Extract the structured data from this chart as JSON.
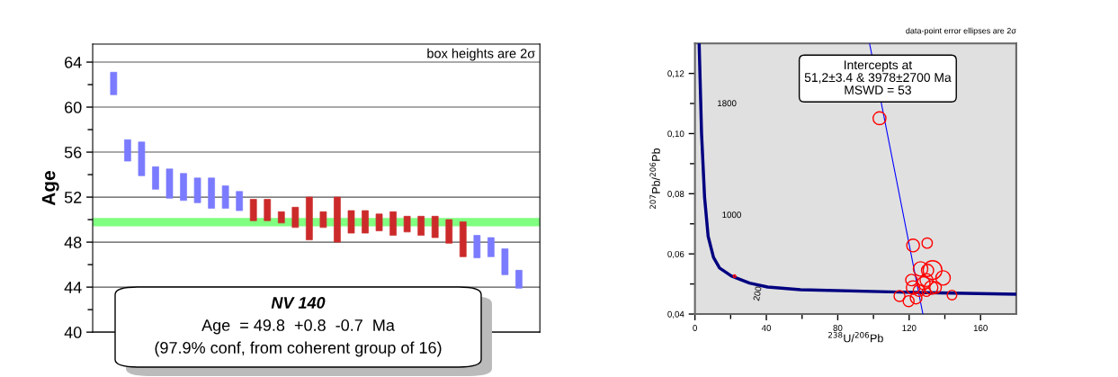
{
  "chart_data": [
    {
      "type": "bar",
      "ylabel": "Age",
      "categories": [
        null,
        null,
        null,
        null,
        null,
        null,
        null,
        null,
        null,
        null,
        null,
        null,
        null,
        null,
        null,
        null,
        null,
        null,
        null,
        null,
        null,
        null,
        null,
        null,
        null,
        null,
        null,
        null,
        null,
        null
      ],
      "base": [
        61.1,
        55.2,
        53.9,
        52.7,
        51.9,
        51.7,
        51.5,
        51.0,
        51.0,
        50.8,
        49.9,
        49.9,
        49.7,
        49.3,
        48.2,
        49.3,
        48.0,
        48.8,
        48.8,
        49.0,
        48.6,
        48.9,
        48.6,
        48.4,
        47.9,
        46.7,
        46.6,
        46.7,
        45.1,
        43.9
      ],
      "values": [
        2.0,
        1.9,
        3.0,
        2.0,
        2.6,
        2.4,
        2.2,
        2.7,
        2.0,
        1.7,
        1.9,
        1.9,
        1.0,
        1.8,
        3.8,
        1.4,
        4.0,
        2.0,
        2.0,
        1.5,
        2.1,
        1.4,
        1.7,
        1.9,
        2.1,
        3.1,
        2.0,
        1.7,
        2.3,
        1.6
      ],
      "colors": [
        "#7b7bff",
        "#7b7bff",
        "#7b7bff",
        "#7b7bff",
        "#7b7bff",
        "#7b7bff",
        "#7b7bff",
        "#7b7bff",
        "#7b7bff",
        "#7b7bff",
        "#cc2a2a",
        "#cc2a2a",
        "#cc2a2a",
        "#cc2a2a",
        "#cc2a2a",
        "#cc2a2a",
        "#cc2a2a",
        "#cc2a2a",
        "#cc2a2a",
        "#cc2a2a",
        "#cc2a2a",
        "#cc2a2a",
        "#cc2a2a",
        "#cc2a2a",
        "#cc2a2a",
        "#cc2a2a",
        "#7b7bff",
        "#7b7bff",
        "#7b7bff",
        "#7b7bff"
      ],
      "ylim": [
        40,
        65.6
      ],
      "yticks": [
        40,
        {
          "value": 42,
          "label": null
        },
        44,
        {
          "value": 46,
          "label": null
        },
        48,
        {
          "value": 50,
          "label": null
        },
        52,
        {
          "value": 54,
          "label": null
        },
        56,
        {
          "value": 58,
          "label": null
        },
        60,
        {
          "value": 62,
          "label": null
        },
        64
      ],
      "grid": "y",
      "bands": [
        {
          "axis": "y",
          "from": 49.4,
          "to": 50.15,
          "color": "#80ff80"
        }
      ],
      "annotations": [
        "box heights are 2σ",
        "NV 140",
        "Age  = 49.8  +0.8  -0.7  Ma",
        "(97.9% conf, from coherent group of 16)"
      ]
    },
    {
      "type": "scatter",
      "xlabel": "$^{238}$U/$^{206}$Pb",
      "ylabel": "$^{207}$Pb/$^{206}$Pb",
      "xlim": [
        0,
        180
      ],
      "xticks": [
        0,
        {
          "value": 20,
          "label": null
        },
        40,
        {
          "value": 60,
          "label": null
        },
        80,
        {
          "value": 100,
          "label": null
        },
        120,
        {
          "value": 140,
          "label": null
        },
        160
      ],
      "ylim": [
        0.04,
        0.13
      ],
      "yticks": [
        {
          "value": 0.04,
          "label": "0,04"
        },
        {
          "value": 0.05,
          "label": null
        },
        {
          "value": 0.06,
          "label": "0,06"
        },
        {
          "value": 0.07,
          "label": null
        },
        {
          "value": 0.08,
          "label": "0,08"
        },
        {
          "value": 0.09,
          "label": null
        },
        {
          "value": 0.1,
          "label": "0,10"
        },
        {
          "value": 0.11,
          "label": null
        },
        {
          "value": 0.12,
          "label": "0,12"
        }
      ],
      "series": [
        {
          "type": "line",
          "color": "#000080",
          "x": [
            2.35,
            3.7,
            5.4,
            7.4,
            10.4,
            13.8,
            20.5,
            30.6,
            40.7,
            59.2,
            114.6,
            180
          ],
          "values": [
            0.13,
            0.1,
            0.0788,
            0.0658,
            0.0588,
            0.0553,
            0.0526,
            0.0503,
            0.049,
            0.0481,
            0.0473,
            0.0466
          ]
        },
        {
          "type": "line",
          "color": "#0000ff",
          "x": [
            97.8,
            127.7
          ],
          "values": [
            0.13,
            0.04
          ]
        },
        {
          "type": "bubble",
          "color": "#ff0000",
          "sizes": [
            0.47,
            0.46,
            0.3,
            1,
            0.59,
            0.42,
            0.59,
            0.38,
            0.47,
            0.47,
            0.52,
            0.38,
            0.52,
            0.38,
            0.34,
            0.34,
            0.38,
            0.26,
            0.21,
            0.02
          ],
          "x": [
            103.4,
            122.2,
            130.1,
            133.1,
            126.4,
            130.3,
            139.0,
            121.3,
            129.7,
            128.1,
            132.3,
            134.8,
            122.2,
            125.5,
            114.6,
            119.7,
            123.9,
            144.0,
            129.7,
            22.2
          ],
          "values": [
            0.1051,
            0.0628,
            0.0636,
            0.0546,
            0.055,
            0.0545,
            0.052,
            0.0513,
            0.0513,
            0.0503,
            0.0488,
            0.0488,
            0.0488,
            0.0478,
            0.046,
            0.0443,
            0.0453,
            0.0463,
            0.0473,
            0.0526
          ]
        }
      ],
      "annotations": [
        "data-point error ellipses are 2σ",
        "Intercepts at\n51,2±3.4 & 3978±2700 Ma\nMSWD = 53",
        "1800",
        "1000",
        "200"
      ]
    }
  ]
}
